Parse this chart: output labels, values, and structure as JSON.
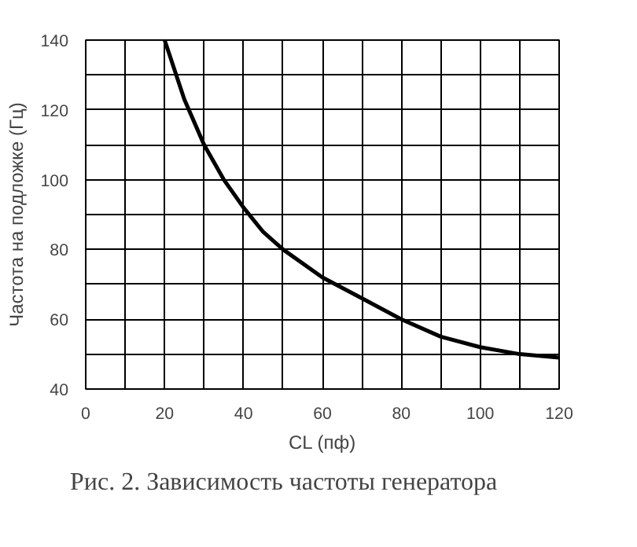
{
  "chart_data": {
    "type": "line",
    "xlabel": "CL (пф)",
    "ylabel": "Частота на подложке (Гц)",
    "annotations": [
      "Рис. 2. Зависимость частоты генератора"
    ],
    "x": [
      20,
      25,
      30,
      35,
      40,
      45,
      50,
      60,
      70,
      80,
      90,
      100,
      110,
      120
    ],
    "series": [
      {
        "color": "#000000",
        "values": [
          140,
          123,
          110,
          100,
          92,
          85,
          80,
          72,
          66,
          60,
          55,
          52,
          50,
          49
        ]
      }
    ],
    "xlim": [
      0,
      120
    ],
    "ylim": [
      40,
      140
    ],
    "xticks": [
      0,
      {
        "value": 10,
        "label": null
      },
      20,
      {
        "value": 30,
        "label": null
      },
      40,
      {
        "value": 50,
        "label": null
      },
      60,
      {
        "value": 70,
        "label": null
      },
      80,
      {
        "value": 90,
        "label": null
      },
      100,
      {
        "value": 110,
        "label": null
      },
      120
    ],
    "yticks": [
      40,
      {
        "value": 50,
        "label": null
      },
      60,
      {
        "value": 70,
        "label": null
      },
      80,
      {
        "value": 90,
        "label": null
      },
      100,
      {
        "value": 110,
        "label": null
      },
      120,
      {
        "value": 130,
        "label": null
      },
      140
    ],
    "grid": true,
    "marker": "none",
    "line_style": "solid"
  }
}
